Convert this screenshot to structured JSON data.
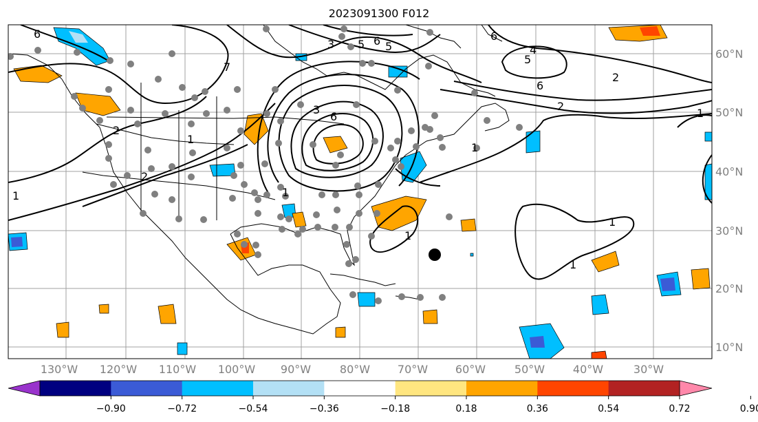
{
  "title": "2023091300 F012",
  "lon_labels": [
    "130°W",
    "120°W",
    "110°W",
    "100°W",
    "90°W",
    "80°W",
    "70°W",
    "60°W",
    "50°W",
    "40°W",
    "30°W"
  ],
  "lat_labels": [
    "60°N",
    "50°N",
    "40°N",
    "30°N",
    "20°N",
    "10°N"
  ],
  "colorbar": {
    "ticks": [
      "−0.90",
      "−0.72",
      "−0.54",
      "−0.36",
      "−0.18",
      "0.18",
      "0.36",
      "0.54",
      "0.72",
      "0.90"
    ],
    "colors": [
      "#9933cc",
      "#000080",
      "#3b5bd6",
      "#00bfff",
      "#b3e0f5",
      "#ffffff",
      "#ffe680",
      "#ffa500",
      "#ff4500",
      "#b22222",
      "#ff88aa"
    ]
  },
  "contour_labels": [
    "6",
    "6",
    "7",
    "2",
    "1",
    "2",
    "1",
    "3",
    "6",
    "2",
    "5",
    "3",
    "5",
    "6",
    "5",
    "4",
    "6",
    "2",
    "1",
    "1",
    "1",
    "1",
    "1",
    "1"
  ]
}
